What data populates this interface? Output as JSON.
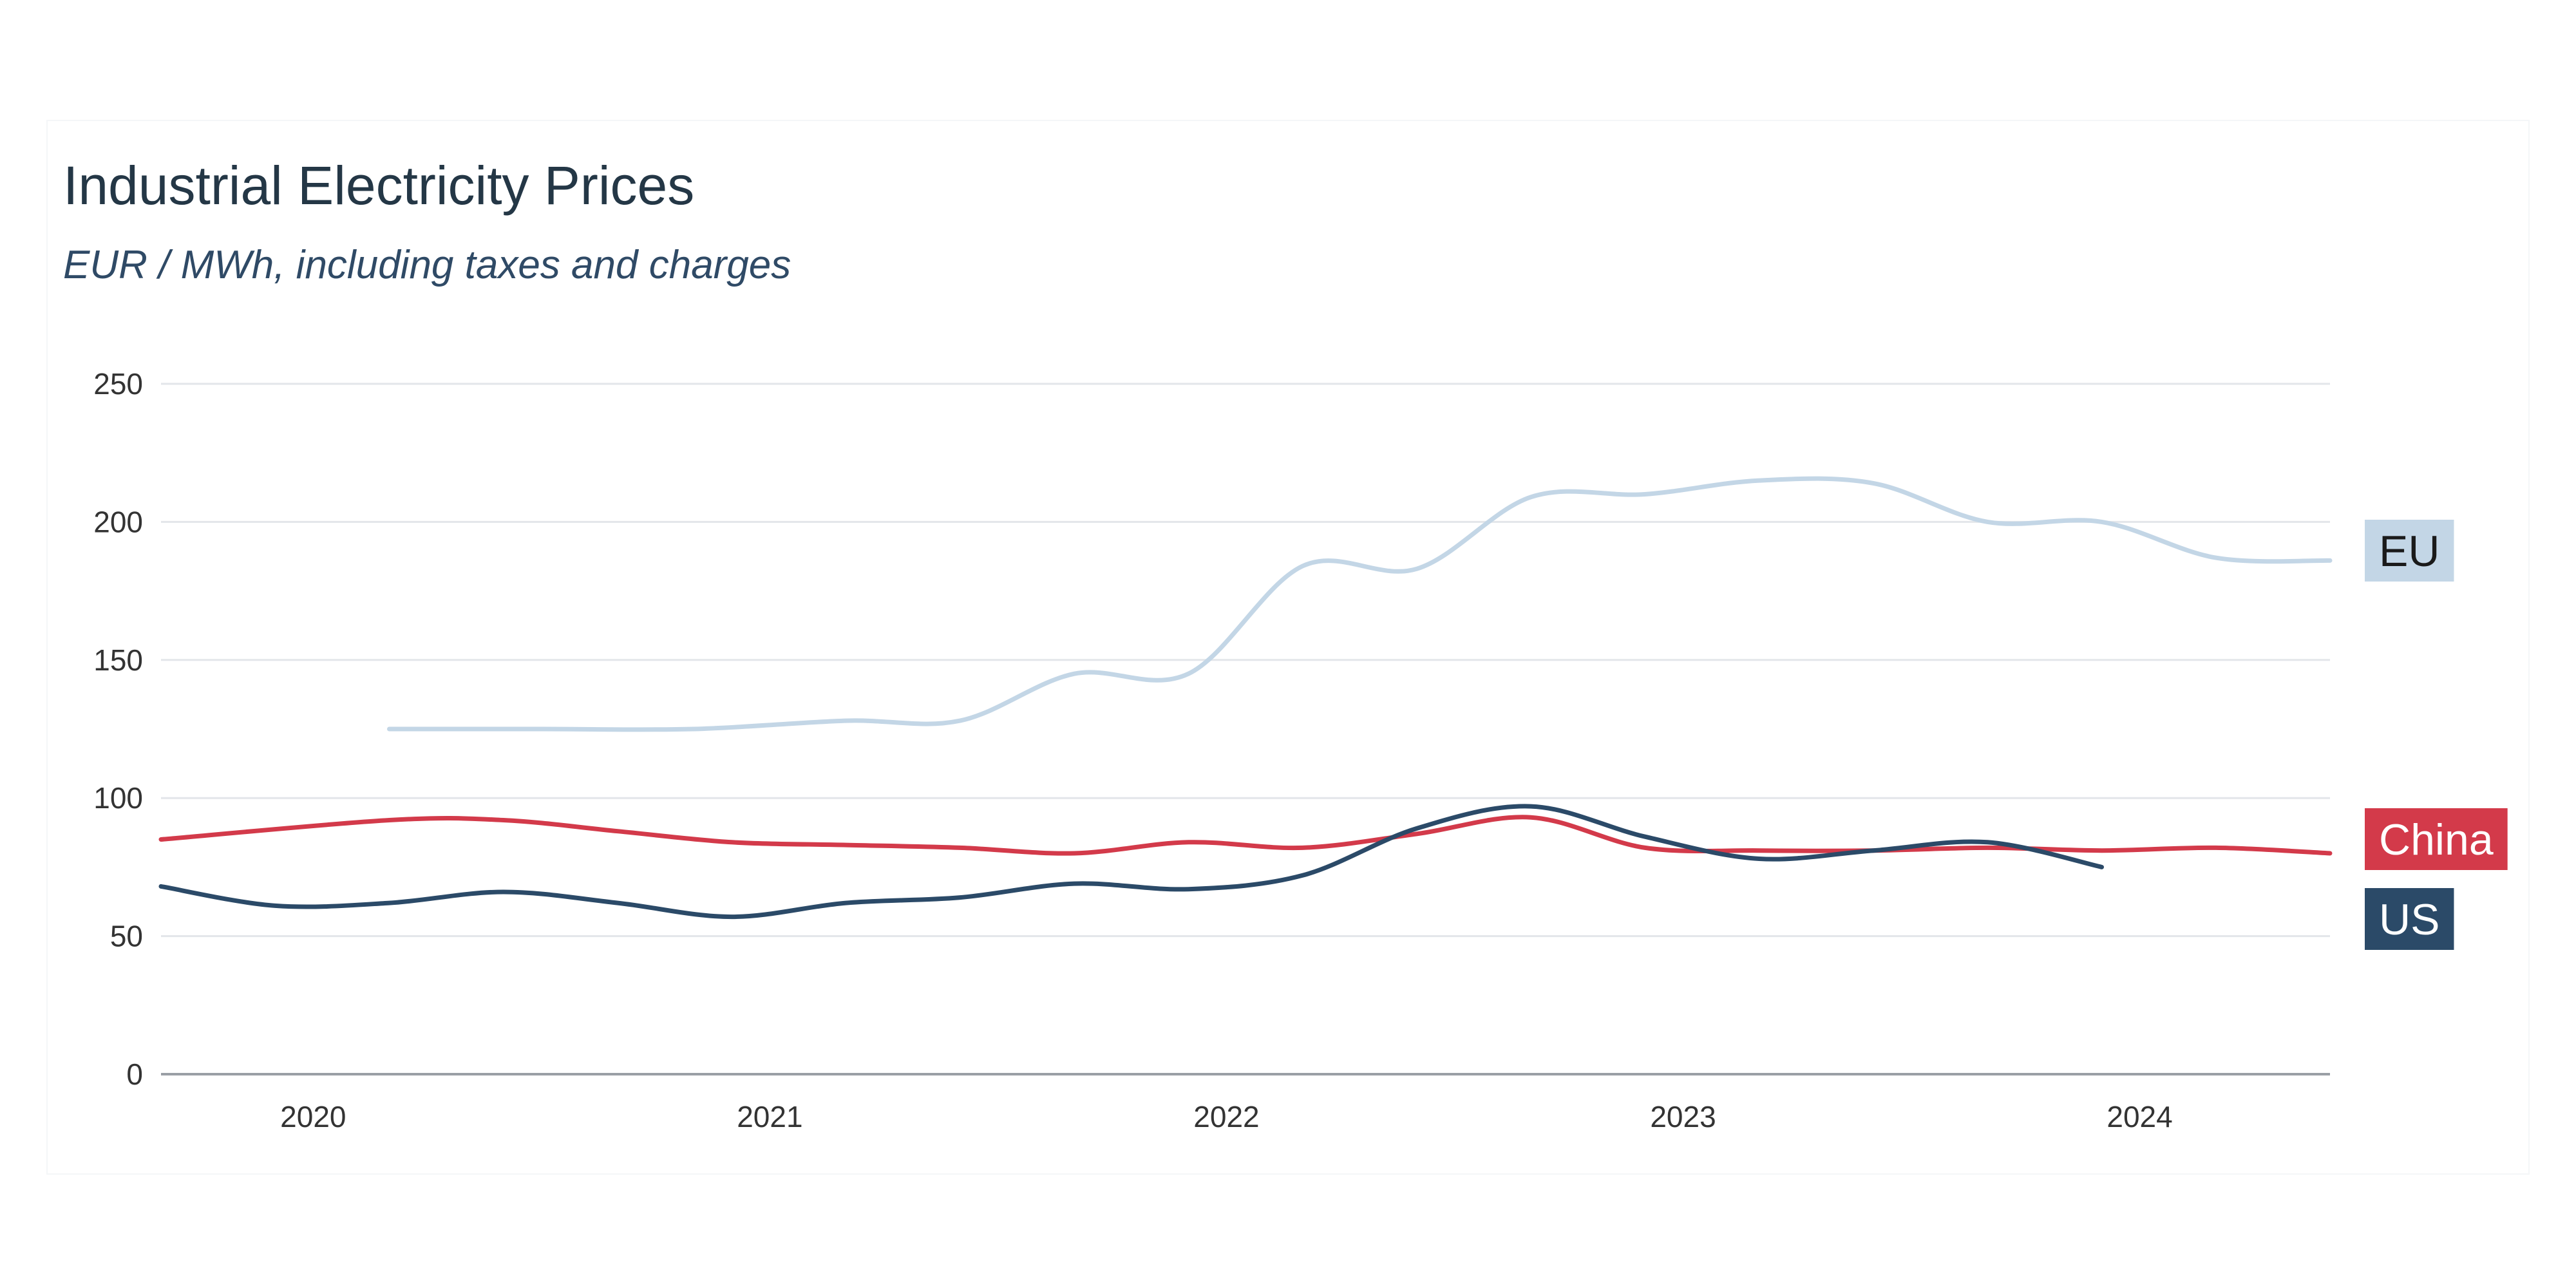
{
  "chart": {
    "title": "Industrial Electricity Prices",
    "subtitle": "EUR / MWh, including taxes and charges"
  },
  "colors": {
    "EU": "#c3d6e6",
    "China": "#d33a4a",
    "US": "#2b4a68",
    "grid": "#e3e6ea",
    "axis": "#9a9fa5",
    "tick_text": "#333333"
  },
  "chart_data": {
    "type": "line",
    "title": "Industrial Electricity Prices",
    "subtitle": "EUR / MWh, including taxes and charges",
    "xlabel": "",
    "ylabel": "",
    "xlim": [
      "2019-09",
      "2024-06"
    ],
    "ylim": [
      0,
      250
    ],
    "yticks": [
      0,
      50,
      100,
      150,
      200,
      250
    ],
    "xticks": [
      "2020",
      "2021",
      "2022",
      "2023",
      "2024"
    ],
    "grid": true,
    "legend": "inline-right-end-labels",
    "series": [
      {
        "name": "EU",
        "x": [
          "2020-03",
          "2020-07",
          "2020-11",
          "2021-03",
          "2021-06",
          "2021-09",
          "2021-12",
          "2022-03",
          "2022-06",
          "2022-09",
          "2022-12",
          "2023-03",
          "2023-06",
          "2023-09",
          "2023-12",
          "2024-03",
          "2024-06"
        ],
        "values": [
          125,
          125,
          125,
          128,
          128,
          145,
          145,
          184,
          183,
          209,
          210,
          215,
          214,
          200,
          200,
          187,
          186
        ]
      },
      {
        "name": "China",
        "x": [
          "2019-09",
          "2020-03",
          "2020-06",
          "2020-09",
          "2020-12",
          "2021-03",
          "2021-06",
          "2021-09",
          "2021-12",
          "2022-03",
          "2022-06",
          "2022-09",
          "2022-12",
          "2023-03",
          "2023-06",
          "2023-09",
          "2023-12",
          "2024-03",
          "2024-06"
        ],
        "values": [
          85,
          92,
          92,
          88,
          84,
          83,
          82,
          80,
          84,
          82,
          87,
          93,
          82,
          81,
          81,
          82,
          81,
          82,
          80
        ]
      },
      {
        "name": "US",
        "x": [
          "2019-09",
          "2019-12",
          "2020-03",
          "2020-06",
          "2020-09",
          "2020-12",
          "2021-03",
          "2021-06",
          "2021-09",
          "2021-12",
          "2022-03",
          "2022-06",
          "2022-09",
          "2022-12",
          "2023-03",
          "2023-06",
          "2023-09",
          "2023-12"
        ],
        "values": [
          68,
          61,
          62,
          66,
          62,
          57,
          62,
          64,
          69,
          67,
          72,
          89,
          97,
          86,
          78,
          81,
          84,
          75
        ]
      }
    ]
  }
}
